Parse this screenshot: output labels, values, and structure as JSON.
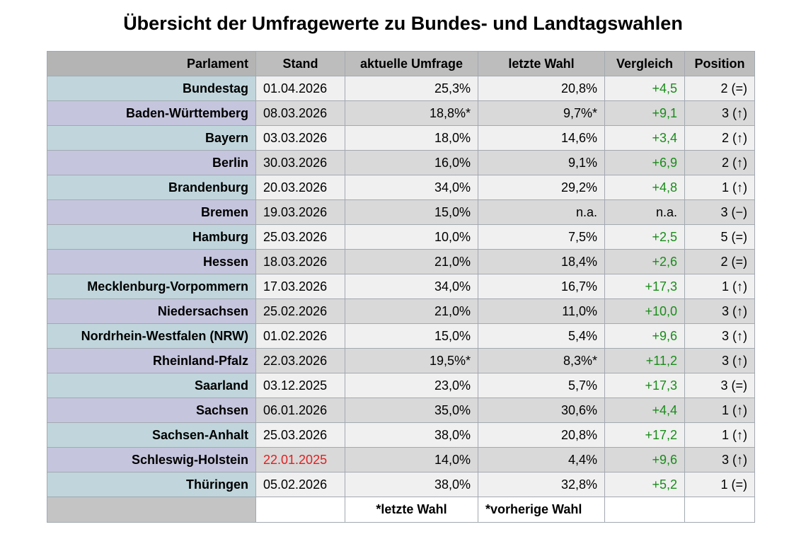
{
  "title": "Übersicht der Umfragewerte zu Bundes- und Landtagswahlen",
  "colors": {
    "header_bg": "#bdbdbd",
    "parl_alt_1": "#c0d6dc",
    "parl_alt_2": "#c5c5de",
    "row_light": "#f0f0f0",
    "row_dark": "#d9d9d9",
    "positive": "#1a8c1a",
    "outdated_date": "#e02020"
  },
  "headers": {
    "parlament": "Parlament",
    "stand": "Stand",
    "umfrage": "aktuelle Umfrage",
    "wahl": "letzte Wahl",
    "vergleich": "Vergleich",
    "position": "Position"
  },
  "rows": [
    {
      "parlament": "Bundestag",
      "stand": "01.04.2026",
      "umfrage": "25,3%",
      "wahl": "20,8%",
      "vergleich": "+4,5",
      "position": "2 (=)"
    },
    {
      "parlament": "Baden-Württemberg",
      "stand": "08.03.2026",
      "umfrage": "18,8%*",
      "wahl": "9,7%*",
      "vergleich": "+9,1",
      "position": "3 (↑)"
    },
    {
      "parlament": "Bayern",
      "stand": "03.03.2026",
      "umfrage": "18,0%",
      "wahl": "14,6%",
      "vergleich": "+3,4",
      "position": "2 (↑)"
    },
    {
      "parlament": "Berlin",
      "stand": "30.03.2026",
      "umfrage": "16,0%",
      "wahl": "9,1%",
      "vergleich": "+6,9",
      "position": "2 (↑)"
    },
    {
      "parlament": "Brandenburg",
      "stand": "20.03.2026",
      "umfrage": "34,0%",
      "wahl": "29,2%",
      "vergleich": "+4,8",
      "position": "1 (↑)"
    },
    {
      "parlament": "Bremen",
      "stand": "19.03.2026",
      "umfrage": "15,0%",
      "wahl": "n.a.",
      "vergleich": "n.a.",
      "position": "3 (−)"
    },
    {
      "parlament": "Hamburg",
      "stand": "25.03.2026",
      "umfrage": "10,0%",
      "wahl": "7,5%",
      "vergleich": "+2,5",
      "position": "5 (=)"
    },
    {
      "parlament": "Hessen",
      "stand": "18.03.2026",
      "umfrage": "21,0%",
      "wahl": "18,4%",
      "vergleich": "+2,6",
      "position": "2 (=)"
    },
    {
      "parlament": "Mecklenburg-Vorpommern",
      "stand": "17.03.2026",
      "umfrage": "34,0%",
      "wahl": "16,7%",
      "vergleich": "+17,3",
      "position": "1 (↑)"
    },
    {
      "parlament": "Niedersachsen",
      "stand": "25.02.2026",
      "umfrage": "21,0%",
      "wahl": "11,0%",
      "vergleich": "+10,0",
      "position": "3 (↑)"
    },
    {
      "parlament": "Nordrhein-Westfalen (NRW)",
      "stand": "01.02.2026",
      "umfrage": "15,0%",
      "wahl": "5,4%",
      "vergleich": "+9,6",
      "position": "3 (↑)"
    },
    {
      "parlament": "Rheinland-Pfalz",
      "stand": "22.03.2026",
      "umfrage": "19,5%*",
      "wahl": "8,3%*",
      "vergleich": "+11,2",
      "position": "3 (↑)"
    },
    {
      "parlament": "Saarland",
      "stand": "03.12.2025",
      "umfrage": "23,0%",
      "wahl": "5,7%",
      "vergleich": "+17,3",
      "position": "3 (=)"
    },
    {
      "parlament": "Sachsen",
      "stand": "06.01.2026",
      "umfrage": "35,0%",
      "wahl": "30,6%",
      "vergleich": "+4,4",
      "position": "1 (↑)"
    },
    {
      "parlament": "Sachsen-Anhalt",
      "stand": "25.03.2026",
      "umfrage": "38,0%",
      "wahl": "20,8%",
      "vergleich": "+17,2",
      "position": "1 (↑)"
    },
    {
      "parlament": "Schleswig-Holstein",
      "stand": "22.01.2025",
      "umfrage": "14,0%",
      "wahl": "4,4%",
      "vergleich": "+9,6",
      "position": "3 (↑)"
    },
    {
      "parlament": "Thüringen",
      "stand": "05.02.2026",
      "umfrage": "38,0%",
      "wahl": "32,8%",
      "vergleich": "+5,2",
      "position": "1 (=)"
    }
  ],
  "footer": {
    "note_umfrage": "*letzte Wahl",
    "note_wahl": "*vorherige Wahl"
  }
}
